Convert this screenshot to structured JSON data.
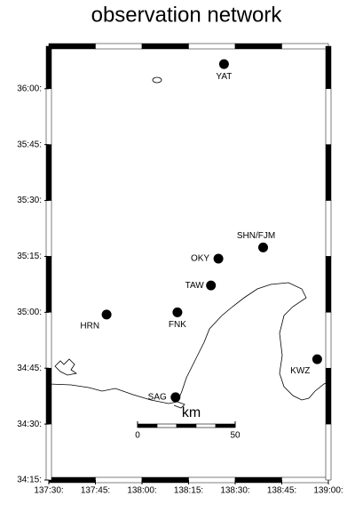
{
  "chart_data": {
    "type": "map",
    "title": "observation network",
    "xlim": [
      137.5,
      139.0
    ],
    "ylim": [
      34.25,
      36.19
    ],
    "xticks": [
      {
        "value": 137.5,
        "label": "137:30"
      },
      {
        "value": 137.75,
        "label": "137:45"
      },
      {
        "value": 138.0,
        "label": "138:00"
      },
      {
        "value": 138.25,
        "label": "138:15"
      },
      {
        "value": 138.5,
        "label": "138:30"
      },
      {
        "value": 138.75,
        "label": "138:45"
      },
      {
        "value": 139.0,
        "label": "139:00"
      }
    ],
    "yticks": [
      {
        "value": 34.25,
        "label": "34:15"
      },
      {
        "value": 34.5,
        "label": "34:30"
      },
      {
        "value": 34.75,
        "label": "34:45"
      },
      {
        "value": 35.0,
        "label": "35:00"
      },
      {
        "value": 35.25,
        "label": "35:15"
      },
      {
        "value": 35.5,
        "label": "35:30"
      },
      {
        "value": 35.75,
        "label": "35:45"
      },
      {
        "value": 36.0,
        "label": "36:00"
      }
    ],
    "series": [
      {
        "names": [
          "YAT",
          "SHN/FJM",
          "OKY",
          "TAW",
          "FNK",
          "HRN",
          "KWZ",
          "SAG"
        ],
        "x": [
          138.44,
          138.65,
          138.41,
          138.37,
          138.19,
          137.81,
          138.94,
          138.18
        ],
        "y": [
          36.11,
          35.29,
          35.24,
          35.12,
          35.0,
          34.99,
          34.79,
          34.62
        ]
      }
    ],
    "scale_bar": {
      "unit": "km",
      "ticks": [
        0,
        50
      ]
    }
  }
}
